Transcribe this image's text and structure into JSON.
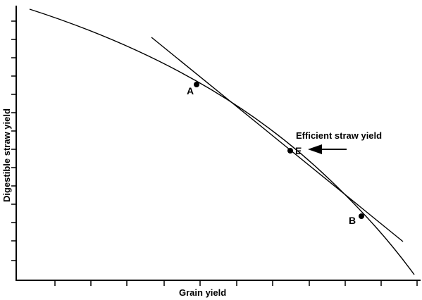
{
  "diagram": {
    "x_axis_label": "Grain yield",
    "y_axis_label": "Digestible straw yield",
    "points": {
      "a": "A",
      "e": "E",
      "b": "B"
    },
    "annotation": "Efficient straw yield",
    "ink_color": "#000000",
    "background_color": "#ffffff"
  }
}
